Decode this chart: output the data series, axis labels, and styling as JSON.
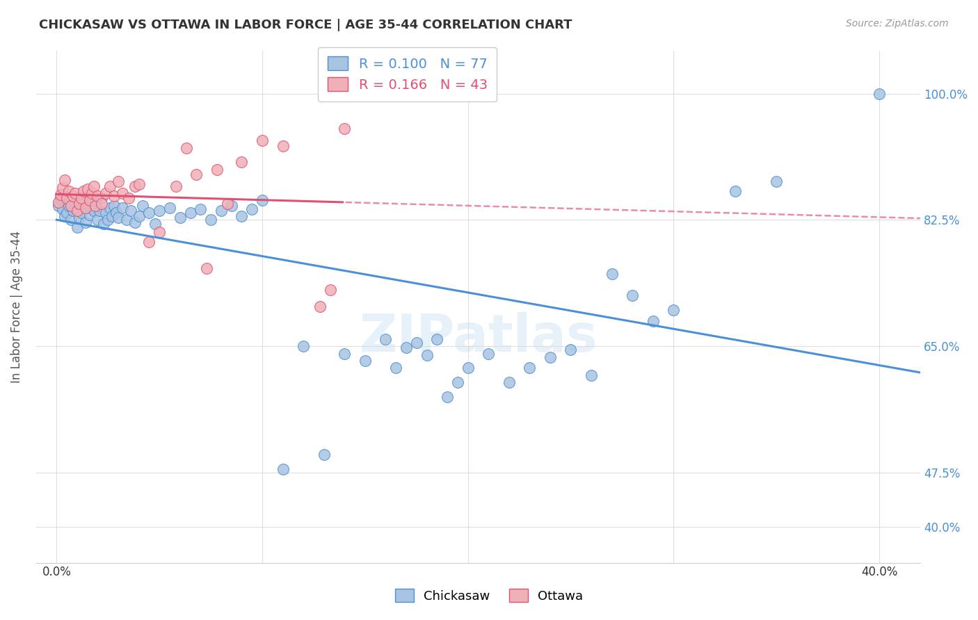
{
  "title": "CHICKASAW VS OTTAWA IN LABOR FORCE | AGE 35-44 CORRELATION CHART",
  "source": "Source: ZipAtlas.com",
  "ylabel": "In Labor Force | Age 35-44",
  "y_ticks": [
    0.4,
    0.475,
    0.65,
    0.825,
    1.0
  ],
  "y_tick_labels": [
    "40.0%",
    "47.5%",
    "65.0%",
    "82.5%",
    "100.0%"
  ],
  "x_ticks": [
    0.0,
    0.1,
    0.2,
    0.3,
    0.4
  ],
  "x_tick_labels": [
    "0.0%",
    "",
    "",
    "",
    "40.0%"
  ],
  "x_min": -0.01,
  "x_max": 0.42,
  "y_min": 0.35,
  "y_max": 1.06,
  "chickasaw_color": "#a8c4e0",
  "ottawa_color": "#f0b0b8",
  "trendline_blue": "#4a90d9",
  "trendline_pink": "#e05070",
  "r_chickasaw": 0.1,
  "n_chickasaw": 77,
  "r_ottawa": 0.166,
  "n_ottawa": 43,
  "watermark": "ZIPatlas",
  "legend_chickasaw": "Chickasaw",
  "legend_ottawa": "Ottawa",
  "chickasaw_x": [
    0.001,
    0.002,
    0.003,
    0.003,
    0.004,
    0.005,
    0.006,
    0.007,
    0.008,
    0.009,
    0.01,
    0.011,
    0.012,
    0.013,
    0.014,
    0.015,
    0.016,
    0.017,
    0.018,
    0.019,
    0.02,
    0.021,
    0.022,
    0.023,
    0.024,
    0.025,
    0.026,
    0.027,
    0.028,
    0.029,
    0.03,
    0.032,
    0.034,
    0.036,
    0.038,
    0.04,
    0.042,
    0.045,
    0.048,
    0.05,
    0.055,
    0.06,
    0.065,
    0.07,
    0.075,
    0.08,
    0.085,
    0.09,
    0.095,
    0.1,
    0.11,
    0.12,
    0.13,
    0.14,
    0.15,
    0.16,
    0.165,
    0.17,
    0.175,
    0.18,
    0.185,
    0.19,
    0.195,
    0.2,
    0.21,
    0.22,
    0.23,
    0.24,
    0.25,
    0.26,
    0.27,
    0.28,
    0.29,
    0.3,
    0.33,
    0.35,
    0.4
  ],
  "chickasaw_y": [
    0.845,
    0.855,
    0.84,
    0.86,
    0.83,
    0.835,
    0.845,
    0.825,
    0.838,
    0.842,
    0.815,
    0.828,
    0.835,
    0.848,
    0.822,
    0.855,
    0.832,
    0.842,
    0.838,
    0.852,
    0.825,
    0.838,
    0.855,
    0.82,
    0.835,
    0.825,
    0.842,
    0.83,
    0.845,
    0.835,
    0.828,
    0.842,
    0.825,
    0.838,
    0.822,
    0.83,
    0.845,
    0.835,
    0.82,
    0.838,
    0.842,
    0.828,
    0.835,
    0.84,
    0.825,
    0.838,
    0.845,
    0.83,
    0.84,
    0.852,
    0.48,
    0.65,
    0.5,
    0.64,
    0.63,
    0.66,
    0.62,
    0.648,
    0.655,
    0.638,
    0.66,
    0.58,
    0.6,
    0.62,
    0.64,
    0.6,
    0.62,
    0.635,
    0.645,
    0.61,
    0.75,
    0.72,
    0.685,
    0.7,
    0.865,
    0.878,
    1.0
  ],
  "ottawa_x": [
    0.001,
    0.002,
    0.003,
    0.004,
    0.005,
    0.006,
    0.007,
    0.008,
    0.009,
    0.01,
    0.011,
    0.012,
    0.013,
    0.014,
    0.015,
    0.016,
    0.017,
    0.018,
    0.019,
    0.02,
    0.022,
    0.024,
    0.026,
    0.028,
    0.03,
    0.032,
    0.035,
    0.038,
    0.04,
    0.045,
    0.05,
    0.058,
    0.063,
    0.068,
    0.073,
    0.078,
    0.083,
    0.09,
    0.1,
    0.11,
    0.128,
    0.133,
    0.14
  ],
  "ottawa_y": [
    0.85,
    0.86,
    0.87,
    0.88,
    0.855,
    0.865,
    0.845,
    0.858,
    0.862,
    0.838,
    0.848,
    0.855,
    0.865,
    0.842,
    0.868,
    0.852,
    0.862,
    0.872,
    0.845,
    0.858,
    0.848,
    0.862,
    0.872,
    0.858,
    0.878,
    0.862,
    0.855,
    0.872,
    0.875,
    0.795,
    0.808,
    0.872,
    0.925,
    0.888,
    0.758,
    0.895,
    0.848,
    0.905,
    0.935,
    0.928,
    0.705,
    0.728,
    0.952
  ]
}
